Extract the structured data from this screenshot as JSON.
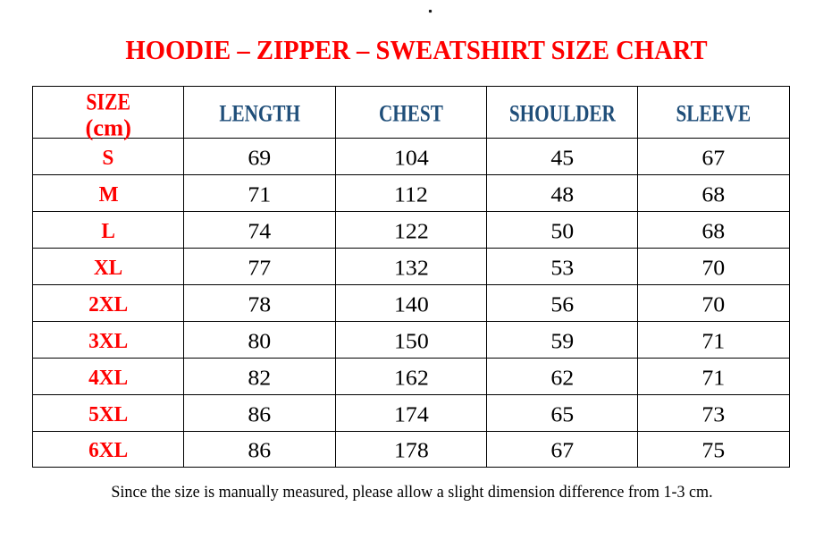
{
  "page": {
    "stray_mark": ".",
    "title": "HOODIE – ZIPPER – SWEATSHIRT SIZE CHART",
    "footnote": "Since the size is manually measured, please allow a slight dimension difference from 1-3 cm."
  },
  "colors": {
    "title_red": "#fe0000",
    "size_label_red": "#fe0000",
    "header_blue": "#1f4e79",
    "body_black": "#000000",
    "border_black": "#000000",
    "background": "#ffffff"
  },
  "chart_data": {
    "type": "table",
    "title": "HOODIE – ZIPPER – SWEATSHIRT SIZE CHART",
    "unit": "cm",
    "columns": [
      "SIZE (cm)",
      "LENGTH",
      "CHEST",
      "SHOULDER",
      "SLEEVE"
    ],
    "rows": [
      [
        "S",
        69,
        104,
        45,
        67
      ],
      [
        "M",
        71,
        112,
        48,
        68
      ],
      [
        "L",
        74,
        122,
        50,
        68
      ],
      [
        "XL",
        77,
        132,
        53,
        70
      ],
      [
        "2XL",
        78,
        140,
        56,
        70
      ],
      [
        "3XL",
        80,
        150,
        59,
        71
      ],
      [
        "4XL",
        82,
        162,
        62,
        71
      ],
      [
        "5XL",
        86,
        174,
        65,
        73
      ],
      [
        "6XL",
        86,
        178,
        67,
        75
      ]
    ]
  },
  "table": {
    "size_head_line1": "SIZE",
    "size_head_line2": "(cm)",
    "measure_columns": [
      "LENGTH",
      "CHEST",
      "SHOULDER",
      "SLEEVE"
    ],
    "rows": [
      {
        "size": "S",
        "length": "69",
        "chest": "104",
        "shoulder": "45",
        "sleeve": "67"
      },
      {
        "size": "M",
        "length": "71",
        "chest": "112",
        "shoulder": "48",
        "sleeve": "68"
      },
      {
        "size": "L",
        "length": "74",
        "chest": "122",
        "shoulder": "50",
        "sleeve": "68"
      },
      {
        "size": "XL",
        "length": "77",
        "chest": "132",
        "shoulder": "53",
        "sleeve": "70"
      },
      {
        "size": "2XL",
        "length": "78",
        "chest": "140",
        "shoulder": "56",
        "sleeve": "70"
      },
      {
        "size": "3XL",
        "length": "80",
        "chest": "150",
        "shoulder": "59",
        "sleeve": "71"
      },
      {
        "size": "4XL",
        "length": "82",
        "chest": "162",
        "shoulder": "62",
        "sleeve": "71"
      },
      {
        "size": "5XL",
        "length": "86",
        "chest": "174",
        "shoulder": "65",
        "sleeve": "73"
      },
      {
        "size": "6XL",
        "length": "86",
        "chest": "178",
        "shoulder": "67",
        "sleeve": "75"
      }
    ]
  }
}
